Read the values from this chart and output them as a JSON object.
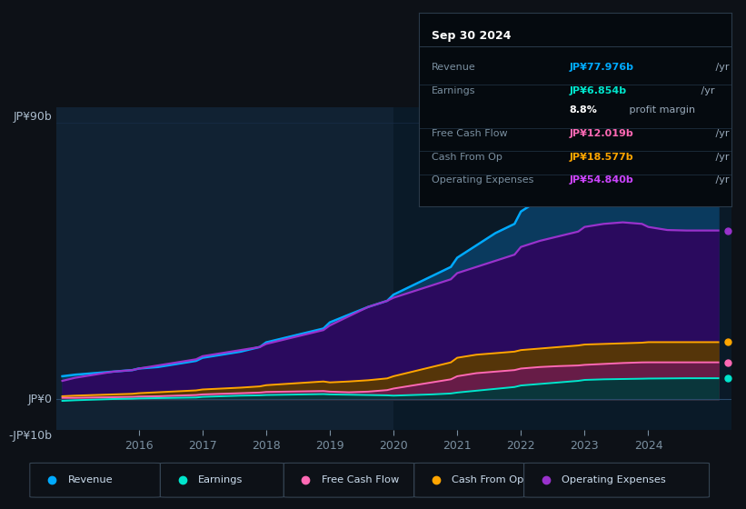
{
  "bg_color": "#0d1117",
  "plot_bg_color": "#112233",
  "plot_bg_highlight": "#0a1a28",
  "revenue_color": "#00aaff",
  "earnings_color": "#00e5cc",
  "free_cash_flow_color": "#ff69b4",
  "cash_from_op_color": "#ffa500",
  "op_expenses_color": "#9932cc",
  "revenue_fill": "#0a3a5e",
  "op_expenses_fill": "#2a0a5e",
  "cash_from_op_fill": "#5a3a00",
  "free_cash_flow_fill": "#6a1a4e",
  "earnings_fill": "#003a3a",
  "x_ticks": [
    2016,
    2017,
    2018,
    2019,
    2020,
    2021,
    2022,
    2023,
    2024
  ],
  "ylim": [
    -10,
    95
  ],
  "xlim_start": 2014.7,
  "xlim_end": 2025.3,
  "highlight_x_start": 2020.0,
  "revenue": {
    "x": [
      2014.8,
      2015.0,
      2015.3,
      2015.6,
      2015.9,
      2016.0,
      2016.3,
      2016.6,
      2016.9,
      2017.0,
      2017.3,
      2017.6,
      2017.9,
      2018.0,
      2018.3,
      2018.6,
      2018.9,
      2019.0,
      2019.3,
      2019.6,
      2019.9,
      2020.0,
      2020.3,
      2020.6,
      2020.9,
      2021.0,
      2021.3,
      2021.6,
      2021.9,
      2022.0,
      2022.3,
      2022.6,
      2022.9,
      2023.0,
      2023.3,
      2023.6,
      2023.9,
      2024.0,
      2024.3,
      2024.6,
      2024.9,
      2025.1
    ],
    "y": [
      7.5,
      8.0,
      8.5,
      9.0,
      9.5,
      10.0,
      10.5,
      11.5,
      12.5,
      13.5,
      14.5,
      15.5,
      17.0,
      18.5,
      20.0,
      21.5,
      23.0,
      25.0,
      27.5,
      30.0,
      32.0,
      34.0,
      37.0,
      40.0,
      43.0,
      46.0,
      50.0,
      54.0,
      57.0,
      61.0,
      65.0,
      68.0,
      70.0,
      72.0,
      74.0,
      76.0,
      77.0,
      78.5,
      79.5,
      79.0,
      78.5,
      77.976
    ]
  },
  "earnings": {
    "x": [
      2014.8,
      2015.0,
      2015.3,
      2015.6,
      2015.9,
      2016.0,
      2016.3,
      2016.6,
      2016.9,
      2017.0,
      2017.3,
      2017.6,
      2017.9,
      2018.0,
      2018.3,
      2018.6,
      2018.9,
      2019.0,
      2019.3,
      2019.6,
      2019.9,
      2020.0,
      2020.3,
      2020.6,
      2020.9,
      2021.0,
      2021.3,
      2021.6,
      2021.9,
      2022.0,
      2022.3,
      2022.6,
      2022.9,
      2023.0,
      2023.3,
      2023.6,
      2023.9,
      2024.0,
      2024.3,
      2024.6,
      2024.9,
      2025.1
    ],
    "y": [
      -0.5,
      -0.3,
      -0.1,
      0.1,
      0.2,
      0.3,
      0.4,
      0.5,
      0.6,
      0.8,
      1.0,
      1.2,
      1.3,
      1.4,
      1.5,
      1.6,
      1.7,
      1.6,
      1.5,
      1.4,
      1.3,
      1.2,
      1.4,
      1.6,
      1.9,
      2.2,
      2.8,
      3.4,
      4.0,
      4.5,
      5.0,
      5.5,
      6.0,
      6.3,
      6.5,
      6.6,
      6.7,
      6.75,
      6.8,
      6.854,
      6.854,
      6.854
    ]
  },
  "free_cash_flow": {
    "x": [
      2014.8,
      2015.0,
      2015.3,
      2015.6,
      2015.9,
      2016.0,
      2016.3,
      2016.6,
      2016.9,
      2017.0,
      2017.3,
      2017.6,
      2017.9,
      2018.0,
      2018.3,
      2018.6,
      2018.9,
      2019.0,
      2019.3,
      2019.6,
      2019.9,
      2020.0,
      2020.3,
      2020.6,
      2020.9,
      2021.0,
      2021.3,
      2021.6,
      2021.9,
      2022.0,
      2022.3,
      2022.6,
      2022.9,
      2023.0,
      2023.3,
      2023.6,
      2023.9,
      2024.0,
      2024.3,
      2024.6,
      2024.9,
      2025.1
    ],
    "y": [
      0.5,
      0.5,
      0.6,
      0.7,
      0.8,
      0.9,
      1.0,
      1.2,
      1.4,
      1.6,
      1.8,
      2.0,
      2.2,
      2.4,
      2.5,
      2.6,
      2.7,
      2.5,
      2.3,
      2.5,
      3.0,
      3.5,
      4.5,
      5.5,
      6.5,
      7.5,
      8.5,
      9.0,
      9.5,
      10.0,
      10.5,
      10.8,
      11.0,
      11.2,
      11.5,
      11.8,
      12.0,
      12.019,
      12.019,
      12.019,
      12.019,
      12.019
    ]
  },
  "cash_from_op": {
    "x": [
      2014.8,
      2015.0,
      2015.3,
      2015.6,
      2015.9,
      2016.0,
      2016.3,
      2016.6,
      2016.9,
      2017.0,
      2017.3,
      2017.6,
      2017.9,
      2018.0,
      2018.3,
      2018.6,
      2018.9,
      2019.0,
      2019.3,
      2019.6,
      2019.9,
      2020.0,
      2020.3,
      2020.6,
      2020.9,
      2021.0,
      2021.3,
      2021.6,
      2021.9,
      2022.0,
      2022.3,
      2022.6,
      2022.9,
      2023.0,
      2023.3,
      2023.6,
      2023.9,
      2024.0,
      2024.3,
      2024.6,
      2024.9,
      2025.1
    ],
    "y": [
      1.0,
      1.2,
      1.4,
      1.6,
      1.8,
      2.0,
      2.3,
      2.6,
      2.9,
      3.2,
      3.5,
      3.8,
      4.2,
      4.6,
      5.0,
      5.4,
      5.8,
      5.5,
      5.8,
      6.2,
      6.8,
      7.5,
      9.0,
      10.5,
      12.0,
      13.5,
      14.5,
      15.0,
      15.5,
      16.0,
      16.5,
      17.0,
      17.5,
      17.8,
      18.0,
      18.2,
      18.4,
      18.577,
      18.577,
      18.577,
      18.577,
      18.577
    ]
  },
  "op_expenses": {
    "x": [
      2014.8,
      2015.0,
      2015.3,
      2015.6,
      2015.9,
      2016.0,
      2016.3,
      2016.6,
      2016.9,
      2017.0,
      2017.3,
      2017.6,
      2017.9,
      2018.0,
      2018.3,
      2018.6,
      2018.9,
      2019.0,
      2019.3,
      2019.6,
      2019.9,
      2020.0,
      2020.3,
      2020.6,
      2020.9,
      2021.0,
      2021.3,
      2021.6,
      2021.9,
      2022.0,
      2022.3,
      2022.6,
      2022.9,
      2023.0,
      2023.3,
      2023.6,
      2023.9,
      2024.0,
      2024.3,
      2024.6,
      2024.9,
      2025.1
    ],
    "y": [
      6.0,
      7.0,
      8.0,
      9.0,
      9.5,
      10.0,
      11.0,
      12.0,
      13.0,
      14.0,
      15.0,
      16.0,
      17.0,
      18.0,
      19.5,
      21.0,
      22.5,
      24.0,
      27.0,
      30.0,
      32.0,
      33.0,
      35.0,
      37.0,
      39.0,
      41.0,
      43.0,
      45.0,
      47.0,
      49.5,
      51.5,
      53.0,
      54.5,
      56.0,
      57.0,
      57.5,
      57.0,
      56.0,
      55.0,
      54.84,
      54.84,
      54.84
    ]
  },
  "info_box": {
    "title": "Sep 30 2024",
    "rows": [
      {
        "label": "Revenue",
        "value": "JP¥77.976b",
        "unit": "/yr",
        "value_color": "#00aaff"
      },
      {
        "label": "Earnings",
        "value": "JP¥6.854b",
        "unit": "/yr",
        "value_color": "#00e5cc"
      },
      {
        "label": "",
        "value": "8.8%",
        "unit": "profit margin",
        "value_color": "#ffffff"
      },
      {
        "label": "Free Cash Flow",
        "value": "JP¥12.019b",
        "unit": "/yr",
        "value_color": "#ff69b4"
      },
      {
        "label": "Cash From Op",
        "value": "JP¥18.577b",
        "unit": "/yr",
        "value_color": "#ffa500"
      },
      {
        "label": "Operating Expenses",
        "value": "JP¥54.840b",
        "unit": "/yr",
        "value_color": "#cc44ff"
      }
    ]
  },
  "legend_items": [
    {
      "label": "Revenue",
      "color": "#00aaff"
    },
    {
      "label": "Earnings",
      "color": "#00e5cc"
    },
    {
      "label": "Free Cash Flow",
      "color": "#ff69b4"
    },
    {
      "label": "Cash From Op",
      "color": "#ffa500"
    },
    {
      "label": "Operating Expenses",
      "color": "#9932cc"
    }
  ],
  "y_label_90": "JP¥90b",
  "y_label_0": "JP¥0",
  "y_label_neg10": "-JP¥10b"
}
